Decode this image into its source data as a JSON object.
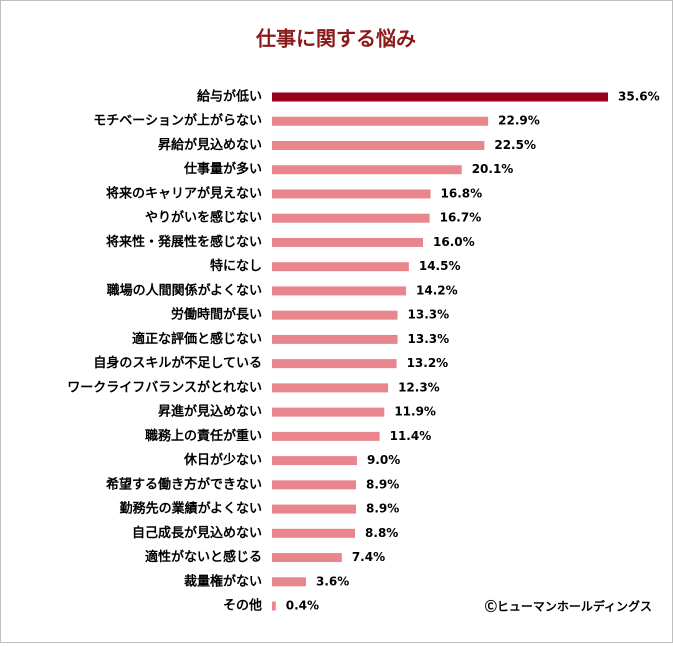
{
  "chart_data": {
    "type": "hbar",
    "title": "仕事に関する悩み",
    "categories": [
      "給与が低い",
      "モチベーションが上がらない",
      "昇給が見込めない",
      "仕事量が多い",
      "将来のキャリアが見えない",
      "やりがいを感じない",
      "将来性・発展性を感じない",
      "特になし",
      "職場の人間関係がよくない",
      "労働時間が長い",
      "適正な評価と感じない",
      "自身のスキルが不足している",
      "ワークライフバランスがとれない",
      "昇進が見込めない",
      "職務上の責任が重い",
      "休日が少ない",
      "希望する働き方ができない",
      "勤務先の業績がよくない",
      "自己成長が見込めない",
      "適性がないと感じる",
      "裁量権がない",
      "その他"
    ],
    "values": [
      35.6,
      22.9,
      22.5,
      20.1,
      16.8,
      16.7,
      16.0,
      14.5,
      14.2,
      13.3,
      13.3,
      13.2,
      12.3,
      11.9,
      11.4,
      9.0,
      8.9,
      8.9,
      8.8,
      7.4,
      3.6,
      0.4
    ],
    "value_labels": [
      "35.6%",
      "22.9%",
      "22.5%",
      "20.1%",
      "16.8%",
      "16.7%",
      "16.0%",
      "14.5%",
      "14.2%",
      "13.3%",
      "13.3%",
      "13.2%",
      "12.3%",
      "11.9%",
      "11.4%",
      "9.0%",
      "8.9%",
      "8.9%",
      "8.8%",
      "7.4%",
      "3.6%",
      "0.4%"
    ],
    "colors": [
      "#99001c",
      "#e9858d",
      "#e9858d",
      "#e9858d",
      "#e9858d",
      "#e9858d",
      "#e9858d",
      "#e9858d",
      "#e9858d",
      "#e9858d",
      "#e9858d",
      "#e9858d",
      "#e9858d",
      "#e9858d",
      "#e9858d",
      "#e9858d",
      "#e9858d",
      "#e9858d",
      "#e9858d",
      "#e9858d",
      "#e9858d",
      "#e9858d"
    ],
    "source": "Ⓒヒューマンホールディングス"
  }
}
